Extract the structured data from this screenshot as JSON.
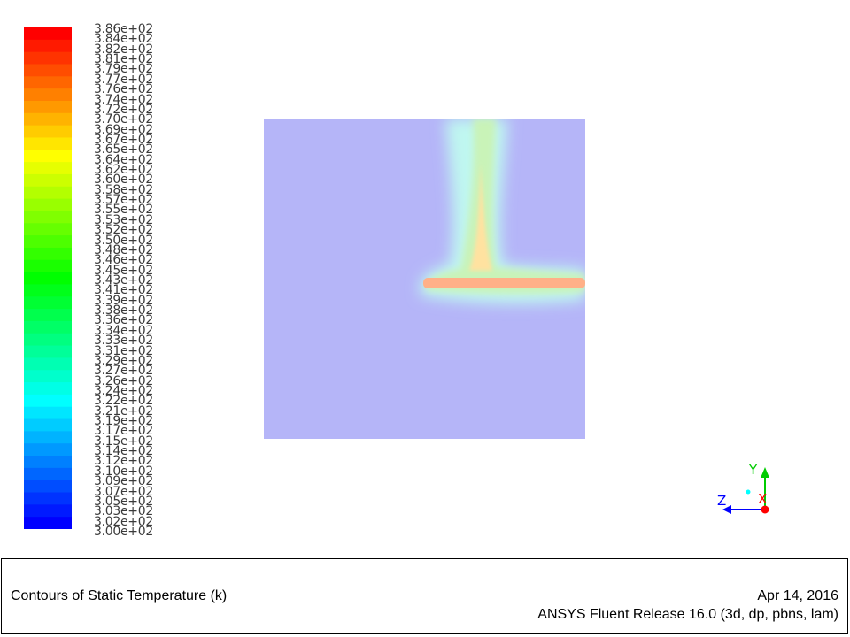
{
  "colorbar": {
    "labels": [
      "3.86e+02",
      "3.84e+02",
      "3.82e+02",
      "3.81e+02",
      "3.79e+02",
      "3.77e+02",
      "3.76e+02",
      "3.74e+02",
      "3.72e+02",
      "3.70e+02",
      "3.69e+02",
      "3.67e+02",
      "3.65e+02",
      "3.64e+02",
      "3.62e+02",
      "3.60e+02",
      "3.58e+02",
      "3.57e+02",
      "3.55e+02",
      "3.53e+02",
      "3.52e+02",
      "3.50e+02",
      "3.48e+02",
      "3.46e+02",
      "3.45e+02",
      "3.43e+02",
      "3.41e+02",
      "3.39e+02",
      "3.38e+02",
      "3.36e+02",
      "3.34e+02",
      "3.33e+02",
      "3.31e+02",
      "3.29e+02",
      "3.27e+02",
      "3.26e+02",
      "3.24e+02",
      "3.22e+02",
      "3.21e+02",
      "3.19e+02",
      "3.17e+02",
      "3.15e+02",
      "3.14e+02",
      "3.12e+02",
      "3.10e+02",
      "3.09e+02",
      "3.07e+02",
      "3.05e+02",
      "3.03e+02",
      "3.02e+02",
      "3.00e+02"
    ],
    "colors": [
      "#ff0000",
      "#ff1a00",
      "#ff3300",
      "#ff4d00",
      "#ff6600",
      "#ff8000",
      "#ff9900",
      "#ffb300",
      "#ffcc00",
      "#ffe600",
      "#ffff00",
      "#e6ff00",
      "#ccff00",
      "#b3ff00",
      "#99ff00",
      "#80ff00",
      "#66ff00",
      "#4dff00",
      "#33ff00",
      "#1aff00",
      "#00ff00",
      "#00ff1a",
      "#00ff33",
      "#00ff4d",
      "#00ff66",
      "#00ff80",
      "#00ff99",
      "#00ffb3",
      "#00ffcc",
      "#00ffe6",
      "#00ffff",
      "#00e6ff",
      "#00ccff",
      "#00b3ff",
      "#0099ff",
      "#0080ff",
      "#0066ff",
      "#004dff",
      "#0033ff",
      "#001aff",
      "#0000ff"
    ]
  },
  "plot": {
    "background_color": "#b5b5f8",
    "plume_color_outer": "#bff7f0",
    "plume_color_mid": "#c9f3b8",
    "plume_color_core": "#ffe2a0",
    "plate_color": "#ffb088"
  },
  "triad": {
    "y_label": "Y",
    "z_label": "Z",
    "x_label": "X",
    "y_color": "#00cc00",
    "z_color": "#0000ff",
    "x_color": "#ff0000",
    "origin_color": "#00ffff"
  },
  "info": {
    "title": "Contours of Static Temperature (k)",
    "date": "Apr 14, 2016",
    "release": "ANSYS Fluent Release 16.0 (3d, dp, pbns, lam)"
  }
}
